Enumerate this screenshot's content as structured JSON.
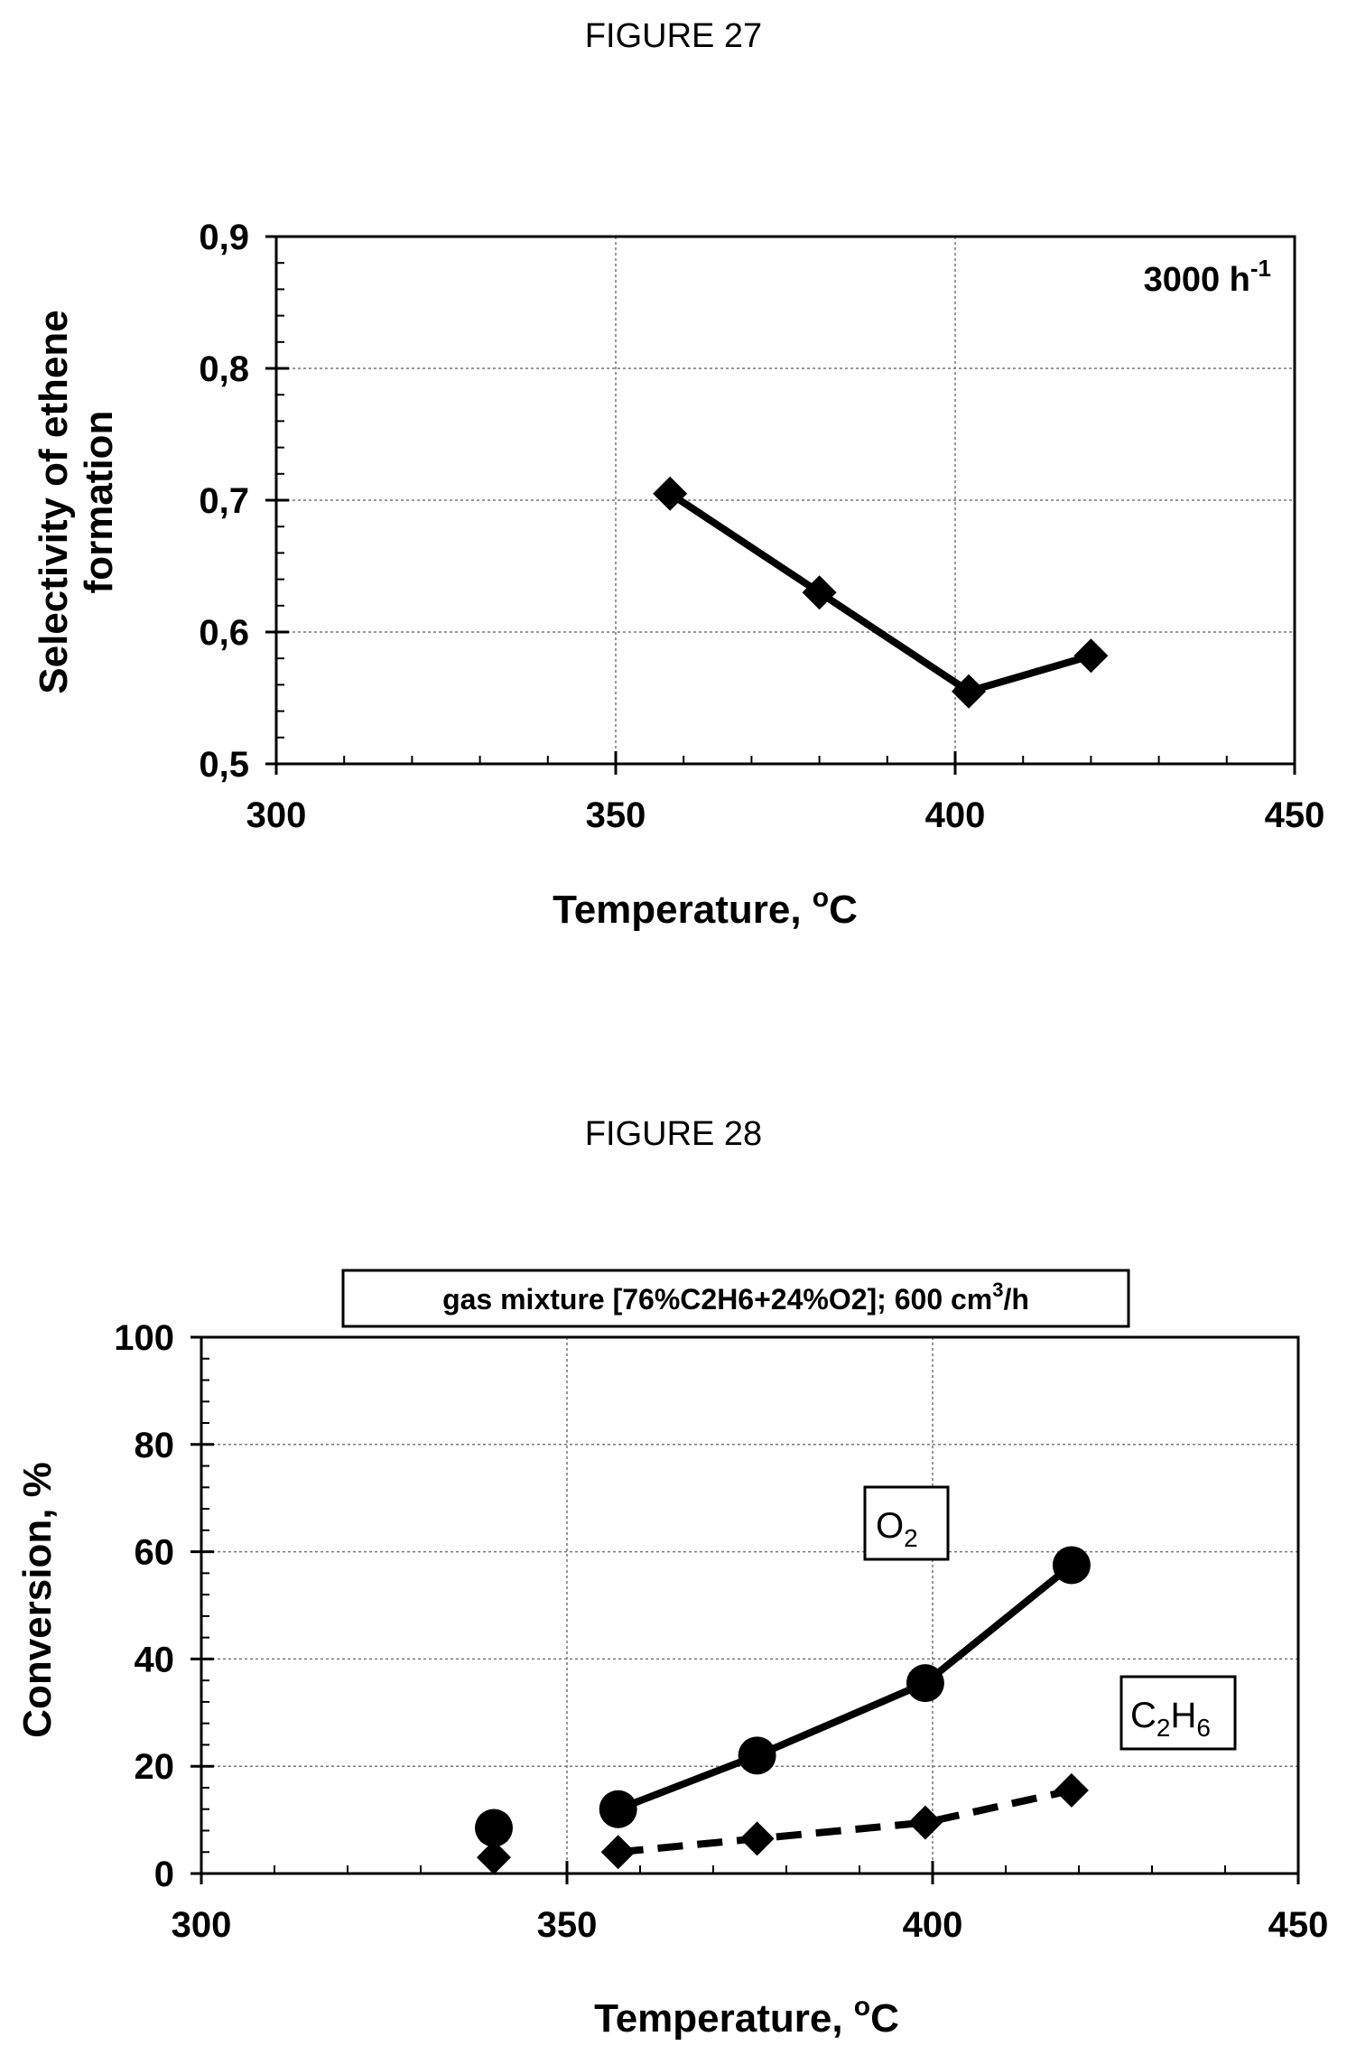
{
  "figures": [
    {
      "title": "FIGURE 27"
    },
    {
      "title": "FIGURE 28"
    }
  ],
  "chart_data": [
    {
      "type": "line",
      "title": "",
      "xlabel_main": "Temperature, ",
      "xlabel_sup": "o",
      "xlabel_end": "C",
      "ylabel_line1": "Selectivity of ethene",
      "ylabel_line2": "formation",
      "xlim": [
        300,
        450
      ],
      "ylim": [
        0.5,
        0.9
      ],
      "xticks": [
        300,
        350,
        400,
        450
      ],
      "xtick_labels": [
        "300",
        "350",
        "400",
        "450"
      ],
      "yticks": [
        0.5,
        0.6,
        0.7,
        0.8,
        0.9
      ],
      "ytick_labels": [
        "0,5",
        "0,6",
        "0,7",
        "0,8",
        "0,9"
      ],
      "grid": true,
      "annotation_main": "3000 h",
      "annotation_sup": "-1",
      "series": [
        {
          "marker": "diamond",
          "line": "solid",
          "x": [
            358,
            380,
            402,
            420
          ],
          "y": [
            0.705,
            0.63,
            0.555,
            0.582
          ]
        }
      ]
    },
    {
      "type": "line",
      "title": "",
      "box_label_main": "gas mixture [76%C2H6+24%O2]; 600 cm",
      "box_label_sup": "3",
      "box_label_end": "/h",
      "xlabel_main": "Temperature, ",
      "xlabel_sup": "o",
      "xlabel_end": "C",
      "ylabel": "Conversion, %",
      "xlim": [
        300,
        450
      ],
      "ylim": [
        0,
        100
      ],
      "xticks": [
        300,
        350,
        400,
        450
      ],
      "xtick_labels": [
        "300",
        "350",
        "400",
        "450"
      ],
      "yticks": [
        0,
        20,
        40,
        60,
        80,
        100
      ],
      "ytick_labels": [
        "0",
        "20",
        "40",
        "60",
        "80",
        "100"
      ],
      "grid": true,
      "series": [
        {
          "label_parts": [
            "O",
            "2",
            ""
          ],
          "marker": "circle",
          "line": "solid",
          "isolated_point": [
            340,
            8.5
          ],
          "x": [
            357,
            376,
            399,
            419
          ],
          "y": [
            12,
            22,
            35.5,
            57.5
          ]
        },
        {
          "label_parts": [
            "C",
            "2",
            "H",
            "6"
          ],
          "marker": "diamond",
          "line": "dashed",
          "isolated_point": [
            340,
            3
          ],
          "x": [
            357,
            376,
            399,
            419
          ],
          "y": [
            4,
            6.5,
            9.5,
            15.5
          ]
        }
      ]
    }
  ]
}
